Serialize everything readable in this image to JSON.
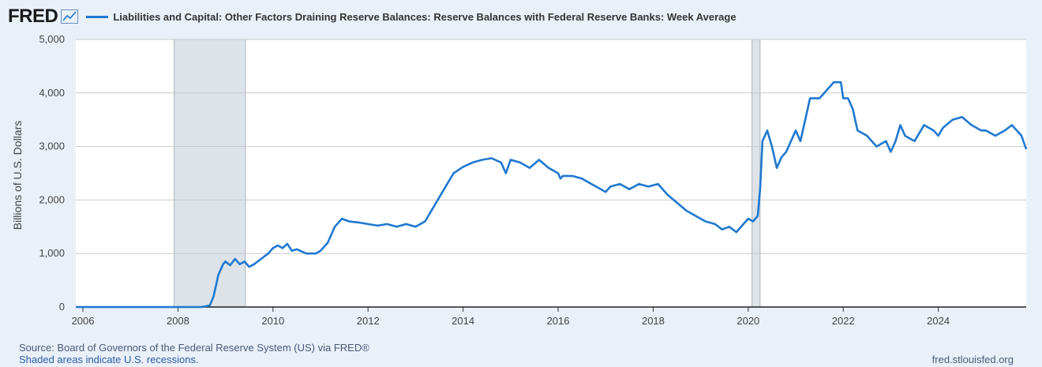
{
  "header": {
    "logo_text": "FRED",
    "series_title": "Liabilities and Capital: Other Factors Draining Reserve Balances: Reserve Balances with Federal Reserve Banks: Week Average"
  },
  "footer": {
    "source": "Source: Board of Governors of the Federal Reserve System (US) via FRED®",
    "recession_note": "Shaded areas indicate U.S. recessions.",
    "site": "fred.stlouisfed.org"
  },
  "colors": {
    "line": "#1f78d1",
    "recession": "#dde3e9",
    "grid": "#c9c9c9",
    "plot_bg": "#ffffff"
  },
  "chart_data": {
    "type": "line",
    "title": "Liabilities and Capital: Other Factors Draining Reserve Balances: Reserve Balances with Federal Reserve Banks: Week Average",
    "xlabel": "",
    "ylabel": "Billions of U.S. Dollars",
    "xlim": [
      2005.85,
      2025.85
    ],
    "ylim": [
      0,
      5000
    ],
    "x_ticks": [
      2006,
      2008,
      2010,
      2012,
      2014,
      2016,
      2018,
      2020,
      2022,
      2024
    ],
    "x_tick_labels": [
      "2006",
      "2008",
      "2010",
      "2012",
      "2014",
      "2016",
      "2018",
      "2020",
      "2022",
      "2024"
    ],
    "y_ticks": [
      0,
      1000,
      2000,
      3000,
      4000,
      5000
    ],
    "y_tick_labels": [
      "0",
      "1,000",
      "2,000",
      "3,000",
      "4,000",
      "5,000"
    ],
    "recessions": [
      [
        2007.92,
        2009.42
      ],
      [
        2020.08,
        2020.25
      ]
    ],
    "series": [
      {
        "name": "Reserve Balances with Federal Reserve Banks: Week Average",
        "x": [
          2005.85,
          2006.5,
          2007.5,
          2008.5,
          2008.67,
          2008.75,
          2008.85,
          2008.95,
          2009.0,
          2009.1,
          2009.2,
          2009.3,
          2009.4,
          2009.5,
          2009.6,
          2009.75,
          2009.9,
          2010.0,
          2010.1,
          2010.2,
          2010.3,
          2010.4,
          2010.5,
          2010.7,
          2010.9,
          2011.0,
          2011.15,
          2011.3,
          2011.45,
          2011.6,
          2011.8,
          2012.0,
          2012.2,
          2012.4,
          2012.6,
          2012.8,
          2013.0,
          2013.2,
          2013.4,
          2013.6,
          2013.8,
          2014.0,
          2014.2,
          2014.4,
          2014.6,
          2014.8,
          2014.9,
          2015.0,
          2015.2,
          2015.4,
          2015.6,
          2015.8,
          2016.0,
          2016.05,
          2016.1,
          2016.3,
          2016.5,
          2016.7,
          2016.9,
          2017.0,
          2017.1,
          2017.3,
          2017.5,
          2017.7,
          2017.9,
          2018.1,
          2018.3,
          2018.5,
          2018.7,
          2018.9,
          2019.1,
          2019.3,
          2019.45,
          2019.6,
          2019.75,
          2019.9,
          2020.0,
          2020.1,
          2020.2,
          2020.25,
          2020.3,
          2020.4,
          2020.5,
          2020.6,
          2020.7,
          2020.8,
          2020.9,
          2021.0,
          2021.1,
          2021.2,
          2021.3,
          2021.5,
          2021.7,
          2021.8,
          2021.95,
          2022.0,
          2022.1,
          2022.2,
          2022.3,
          2022.5,
          2022.7,
          2022.9,
          2023.0,
          2023.1,
          2023.2,
          2023.3,
          2023.5,
          2023.7,
          2023.9,
          2024.0,
          2024.1,
          2024.3,
          2024.5,
          2024.7,
          2024.9,
          2025.0,
          2025.2,
          2025.4,
          2025.55,
          2025.65,
          2025.75,
          2025.85
        ],
        "values": [
          0,
          0,
          0,
          0,
          30,
          200,
          600,
          800,
          850,
          780,
          900,
          800,
          850,
          750,
          800,
          900,
          1000,
          1100,
          1150,
          1100,
          1180,
          1050,
          1080,
          1000,
          1000,
          1050,
          1200,
          1500,
          1650,
          1600,
          1580,
          1550,
          1520,
          1550,
          1500,
          1550,
          1500,
          1600,
          1900,
          2200,
          2500,
          2620,
          2700,
          2750,
          2780,
          2700,
          2500,
          2750,
          2700,
          2600,
          2750,
          2600,
          2500,
          2400,
          2450,
          2450,
          2400,
          2300,
          2200,
          2150,
          2250,
          2300,
          2200,
          2300,
          2250,
          2300,
          2100,
          1950,
          1800,
          1700,
          1600,
          1550,
          1450,
          1500,
          1400,
          1550,
          1650,
          1600,
          1700,
          2200,
          3100,
          3300,
          3000,
          2600,
          2800,
          2900,
          3100,
          3300,
          3100,
          3500,
          3900,
          3900,
          4100,
          4200,
          4200,
          3900,
          3900,
          3700,
          3300,
          3200,
          3000,
          3100,
          2900,
          3100,
          3400,
          3200,
          3100,
          3400,
          3300,
          3200,
          3350,
          3500,
          3550,
          3400,
          3300,
          3300,
          3200,
          3300,
          3400,
          3300,
          3200,
          2950
        ]
      }
    ]
  }
}
